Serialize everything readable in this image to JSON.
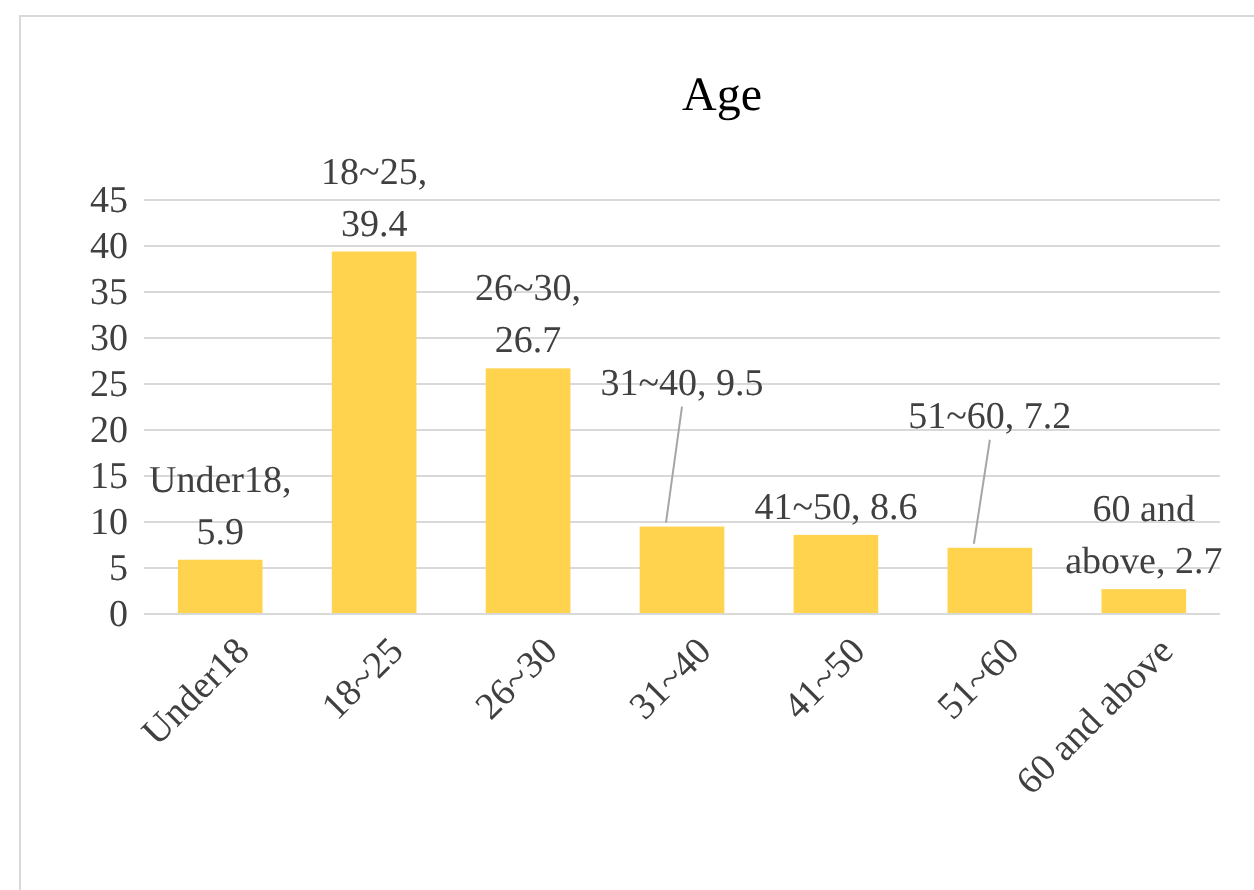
{
  "chart_data": {
    "type": "bar",
    "title": "Age",
    "categories": [
      "Under18",
      "18~25",
      "26~30",
      "31~40",
      "41~50",
      "51~60",
      "60 and above"
    ],
    "values": [
      5.9,
      39.4,
      26.7,
      9.5,
      8.6,
      7.2,
      2.7
    ],
    "color": "#ffd34e",
    "ylim": [
      0,
      45
    ],
    "yticks": [
      0,
      5,
      10,
      15,
      20,
      25,
      30,
      35,
      40,
      45
    ],
    "grid": "y",
    "value_labels": [
      "Under18, 5.9",
      "18~25, 39.4",
      "26~30, 26.7",
      "31~40, 9.5",
      "41~50, 8.6",
      "51~60, 7.2",
      "60 and above, 2.7"
    ]
  }
}
